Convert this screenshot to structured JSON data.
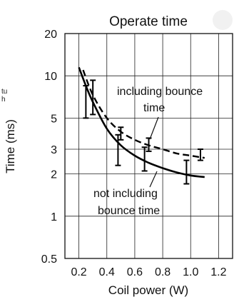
{
  "chart_data": {
    "type": "line",
    "title": "Operate time",
    "xlabel": "Coil power (W)",
    "ylabel": "Time (ms)",
    "xlim": [
      0.1,
      1.3
    ],
    "ylim": [
      0.5,
      20
    ],
    "y_scale": "log",
    "x_ticks": [
      "0.2",
      "0.4",
      "0.6",
      "0.8",
      "1.0",
      "1.2"
    ],
    "y_ticks": [
      {
        "label": "20",
        "value": 20
      },
      {
        "label": "10",
        "value": 10
      },
      {
        "label": "5",
        "value": 5
      },
      {
        "label": "3",
        "value": 3
      },
      {
        "label": "2",
        "value": 2
      },
      {
        "label": "1",
        "value": 1
      },
      {
        "label": "0.5",
        "value": 0.5
      }
    ],
    "grid": true,
    "series": [
      {
        "name": "including bounce time",
        "style": "dashed",
        "x": [
          0.23,
          0.3,
          0.4,
          0.5,
          0.6,
          0.7,
          0.8,
          0.9,
          1.0,
          1.1
        ],
        "y": [
          11,
          7.3,
          5.0,
          4.0,
          3.5,
          3.2,
          3.0,
          2.8,
          2.7,
          2.6
        ],
        "errorbars": [
          {
            "x": 0.3,
            "low": 5.3,
            "high": 9.3
          },
          {
            "x": 0.5,
            "low": 3.5,
            "high": 4.3
          },
          {
            "x": 0.7,
            "low": 2.9,
            "high": 3.6
          },
          {
            "x": 1.07,
            "low": 2.5,
            "high": 3.0
          }
        ]
      },
      {
        "name": "not including bounce time",
        "style": "solid",
        "x": [
          0.2,
          0.25,
          0.3,
          0.4,
          0.5,
          0.6,
          0.7,
          0.8,
          0.9,
          1.0,
          1.1
        ],
        "y": [
          11.5,
          8.5,
          6.5,
          4.2,
          3.2,
          2.7,
          2.4,
          2.2,
          2.05,
          1.95,
          1.9
        ],
        "errorbars": [
          {
            "x": 0.25,
            "low": 5.0,
            "high": 8.5
          },
          {
            "x": 0.48,
            "low": 2.3,
            "high": 3.8
          },
          {
            "x": 0.67,
            "low": 2.1,
            "high": 3.1
          },
          {
            "x": 0.97,
            "low": 1.7,
            "high": 2.5
          }
        ]
      }
    ],
    "annotations": [
      {
        "lines": [
          "including bounce",
          "time"
        ]
      },
      {
        "lines": [
          "not including",
          "bounce time"
        ]
      }
    ],
    "side_text": [
      "tu",
      "h"
    ]
  }
}
